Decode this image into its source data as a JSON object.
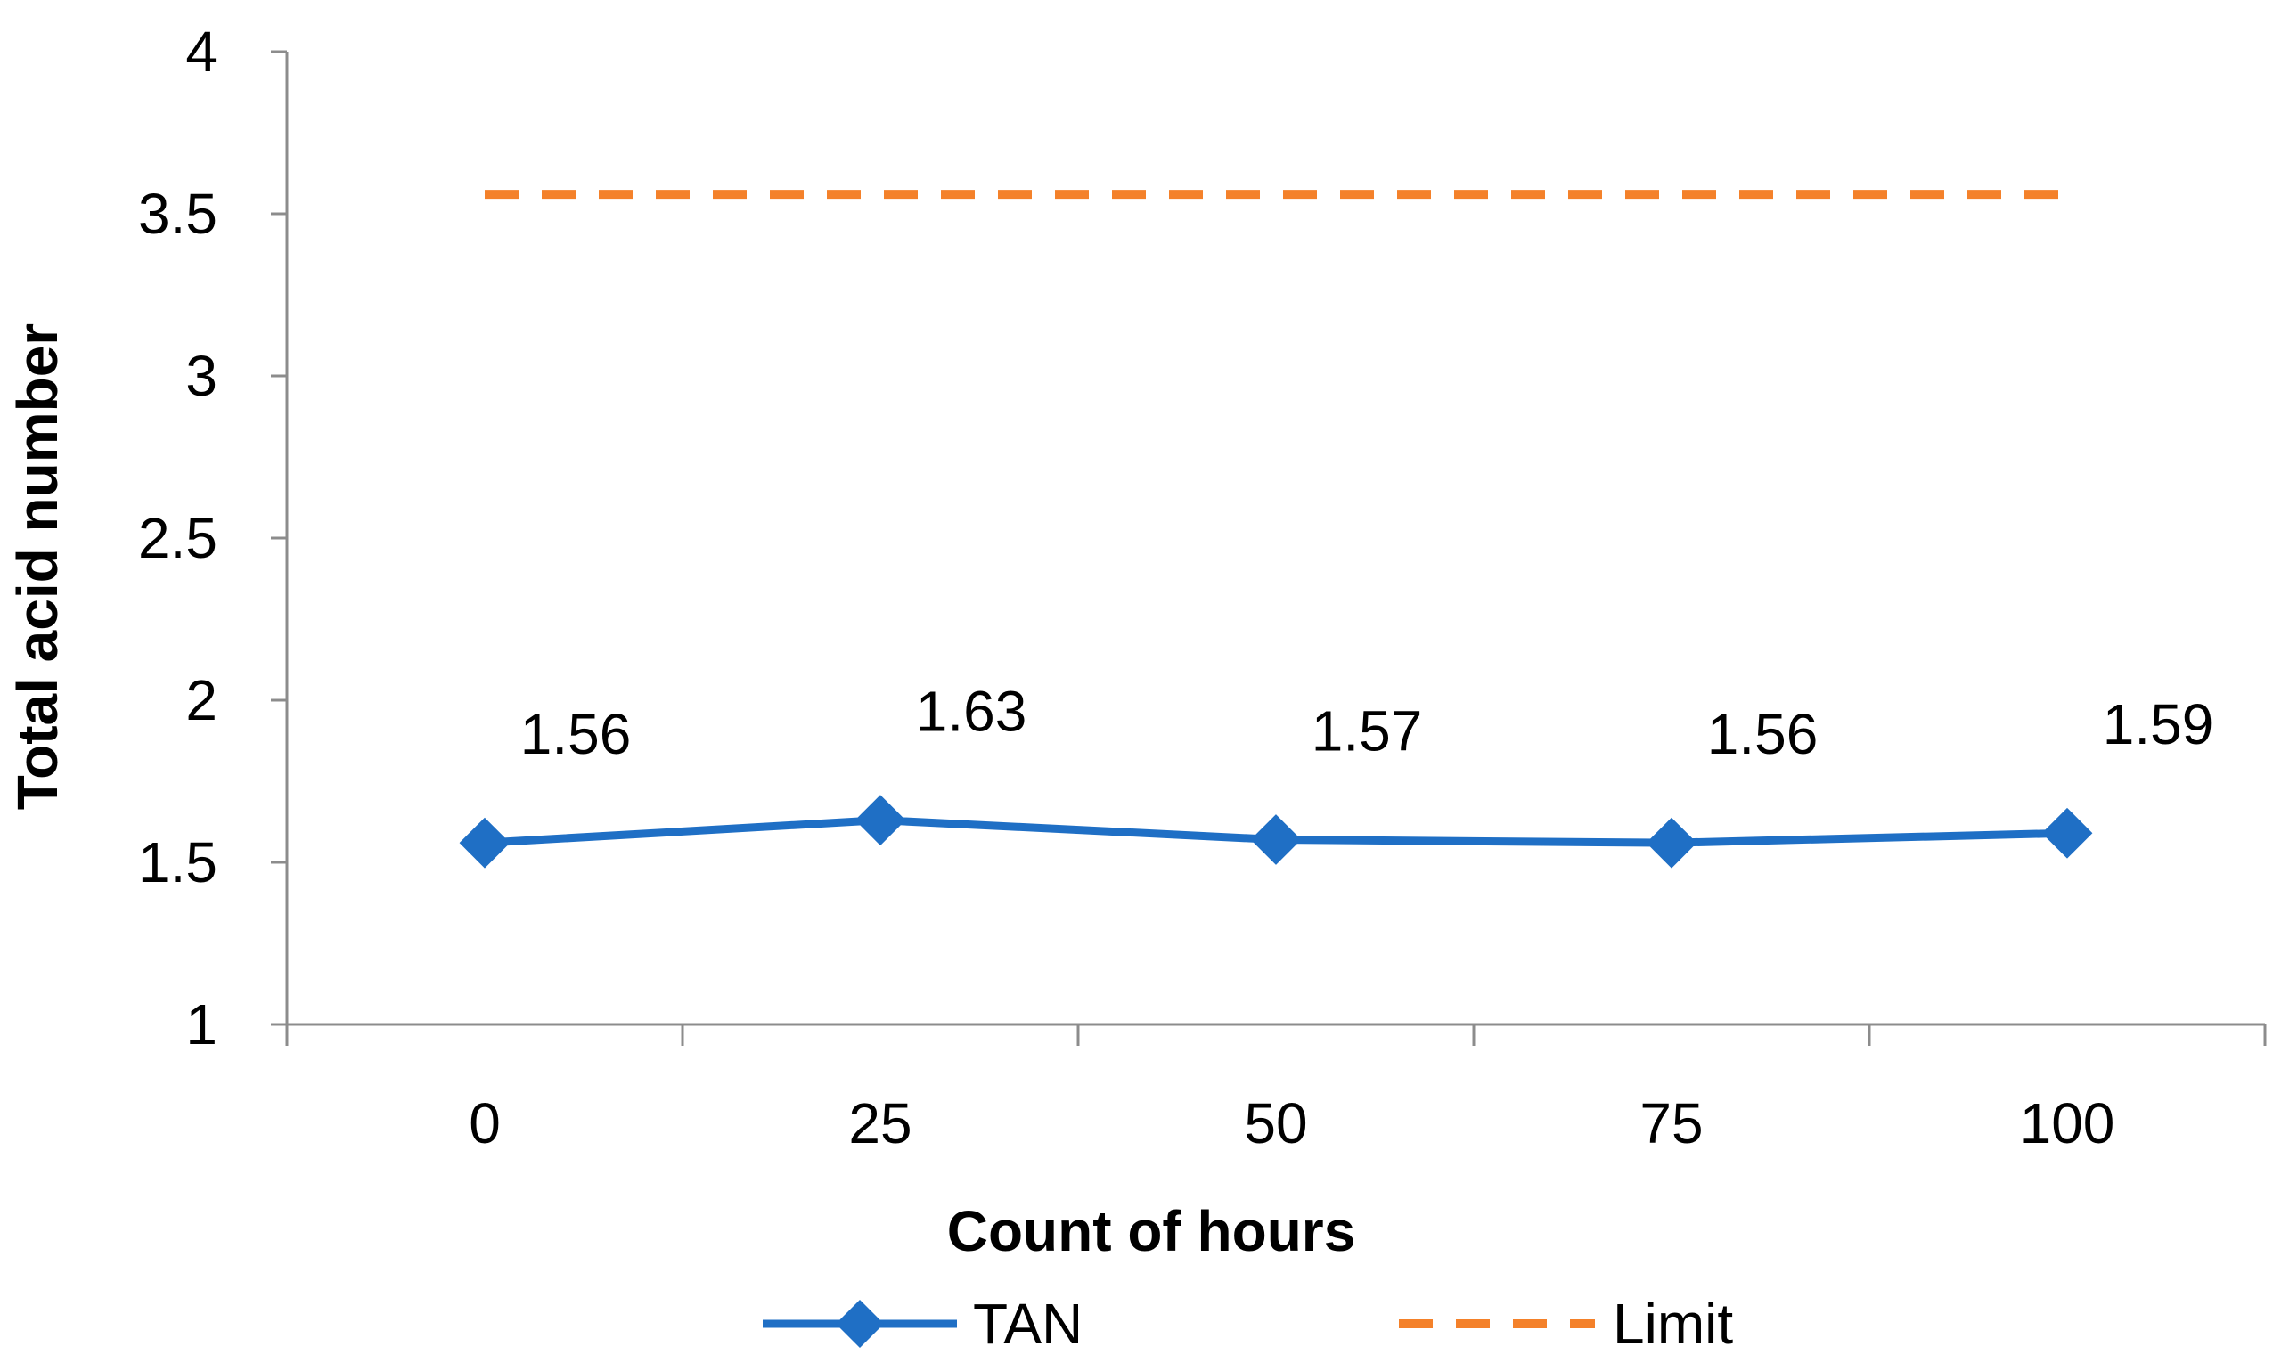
{
  "chart_data": {
    "type": "line",
    "title": "",
    "xlabel": "Count of hours",
    "ylabel": "Total acid number",
    "categories": [
      "0",
      "25",
      "50",
      "75",
      "100"
    ],
    "ylim": [
      1,
      4
    ],
    "yticks": [
      "1",
      "1.5",
      "2",
      "2.5",
      "3",
      "3.5",
      "4"
    ],
    "grid": false,
    "legend_position": "bottom",
    "series": [
      {
        "name": "TAN",
        "values": [
          1.56,
          1.63,
          1.57,
          1.56,
          1.59
        ],
        "data_labels": [
          "1.56",
          "1.63",
          "1.57",
          "1.56",
          "1.59"
        ],
        "color": "#1F6FC5",
        "marker": "diamond",
        "line_style": "solid"
      },
      {
        "name": "Limit",
        "values": [
          3.56,
          3.56,
          3.56,
          3.56,
          3.56
        ],
        "color": "#F4812A",
        "marker": "none",
        "line_style": "dashed"
      }
    ]
  }
}
